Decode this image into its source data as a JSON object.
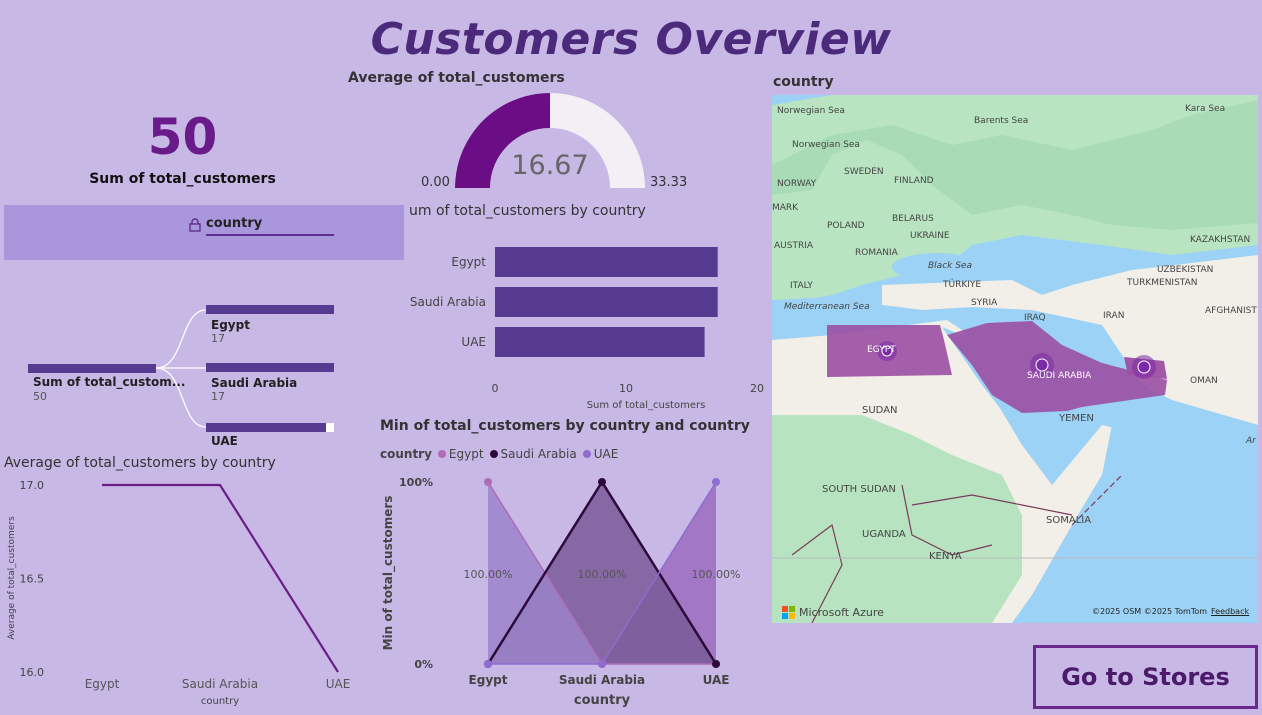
{
  "page": {
    "title": "Customers Overview",
    "nav_button_label": "Go to Stores",
    "colors": {
      "background": "#c8b8e6",
      "accent": "#6a1b8a",
      "bar": "#563b91",
      "line": "#6b1d87"
    }
  },
  "card": {
    "value": "50",
    "label": "Sum of total_customers"
  },
  "slicer": {
    "label": "country",
    "icon": "lock-icon"
  },
  "gauge": {
    "title": "Average of total_customers",
    "value": 16.67,
    "value_label": "16.67",
    "min_label": "0.00",
    "max_label": "33.33",
    "min": 0,
    "max": 33.33
  },
  "decomp_tree": {
    "root_label": "Sum of total_custom...",
    "root_value": "50",
    "nodes": [
      {
        "label": "Egypt",
        "value": "17"
      },
      {
        "label": "Saudi Arabia",
        "value": "17"
      },
      {
        "label": "UAE",
        "value": ""
      }
    ]
  },
  "bar_chart": {
    "title": "um of total_customers by country",
    "xlabel": "Sum of total_customers",
    "ticks": [
      "0",
      "10",
      "20"
    ]
  },
  "line_chart": {
    "title": "Average of total_customers by country",
    "ylabel": "Average of total_customers",
    "xlabel": "country",
    "yticks": [
      "17.0",
      "16.5",
      "16.0"
    ]
  },
  "area_chart": {
    "title": "Min of total_customers by country and country",
    "legend_title": "country",
    "ylabel": "Min of total_customers",
    "xlabel": "country",
    "yticks": [
      "100%",
      "0%"
    ],
    "data_labels": [
      "100.00%",
      "100.00%",
      "100.00%"
    ]
  },
  "map": {
    "title": "country",
    "branding": "Microsoft Azure",
    "copyright": "©2025 OSM  ©2025 TomTom",
    "feedback": "Feedback",
    "labels": {
      "norway": "NORWAY",
      "sweden": "SWEDEN",
      "finland": "FINLAND",
      "norwegian_sea": "Norwegian Sea",
      "barents": "Barents Sea",
      "kara": "Kara Sea",
      "mark": "MARK",
      "poland": "POLAND",
      "belarus": "BELARUS",
      "ukraine": "UKRAINE",
      "austria": "AUSTRIA",
      "romania": "ROMANIA",
      "black_sea": "Black Sea",
      "kazakhstan": "KAZAKHSTAN",
      "uzbekistan": "UZBEKISTAN",
      "turkmenistan": "TURKMENISTAN",
      "italy": "ITALY",
      "turkiye": "TÜRKIYE",
      "mediterranean": "Mediterranean Sea",
      "syria": "SYRIA",
      "iraq": "IRAQ",
      "iran": "IRAN",
      "afghanistan": "AFGHANIST",
      "egypt": "EGYPT",
      "saudi": "SAUDI ARABIA",
      "oman": "OMAN",
      "sudan": "SUDAN",
      "yemen": "YEMEN",
      "south_sudan": "SOUTH SUDAN",
      "somalia": "SOMALIA",
      "uganda": "UGANDA",
      "kenya": "KENYA",
      "ar": "Ar"
    }
  },
  "chart_data": [
    {
      "type": "bar",
      "title": "um of total_customers by country",
      "categories": [
        "Egypt",
        "Saudi Arabia",
        "UAE"
      ],
      "values": [
        17,
        17,
        16
      ],
      "xlabel": "Sum of total_customers",
      "xlim": [
        0,
        20
      ]
    },
    {
      "type": "line",
      "title": "Average of total_customers by country",
      "categories": [
        "Egypt",
        "Saudi Arabia",
        "UAE"
      ],
      "values": [
        17,
        17,
        16
      ],
      "xlabel": "country",
      "ylabel": "Average of total_customers",
      "ylim": [
        16,
        17
      ]
    },
    {
      "type": "area",
      "title": "Min of total_customers by country and country",
      "categories": [
        "Egypt",
        "Saudi Arabia",
        "UAE"
      ],
      "ylim": [
        0,
        1
      ],
      "series": [
        {
          "name": "Egypt",
          "color": "#b06cb8",
          "values": [
            1,
            0,
            0
          ]
        },
        {
          "name": "Saudi Arabia",
          "color": "#2d0a3a",
          "values": [
            0,
            1,
            0
          ]
        },
        {
          "name": "UAE",
          "color": "#8e6cd0",
          "values": [
            0,
            0,
            1
          ]
        }
      ]
    }
  ]
}
